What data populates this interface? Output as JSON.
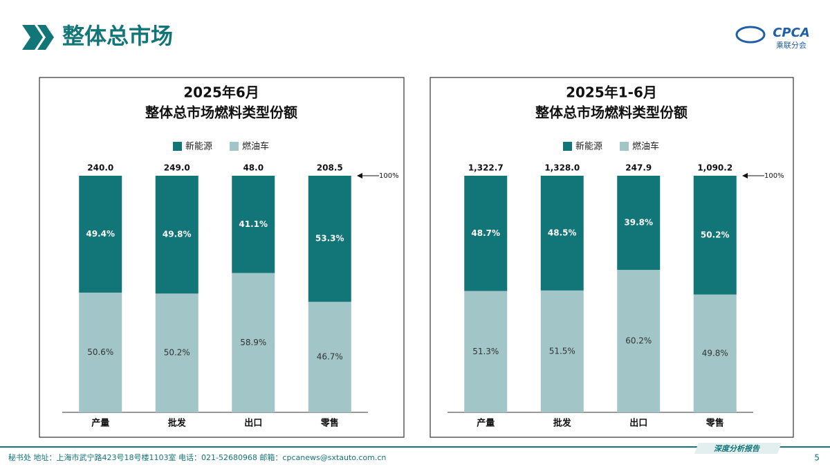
{
  "header": {
    "title": "整体总市场",
    "logo": "CPCA",
    "logo_sub": "乘联分会"
  },
  "chart_data": [
    {
      "type": "stacked_bar",
      "title": "2025年6月",
      "subtitle": "整体总市场燃料类型份额",
      "categories": [
        "产量",
        "批发",
        "出口",
        "零售"
      ],
      "series": [
        {
          "name": "新能源",
          "color": "#127577",
          "values": [
            49.4,
            49.8,
            41.1,
            53.3
          ],
          "value_labels": [
            "49.4%",
            "49.8%",
            "41.1%",
            "53.3%"
          ]
        },
        {
          "name": "燃油车",
          "color": "#a2c6c7",
          "values": [
            50.6,
            50.2,
            58.9,
            46.7
          ],
          "value_labels": [
            "50.6%",
            "50.2%",
            "58.9%",
            "46.7%"
          ]
        }
      ],
      "totals": {
        "values": [
          240,
          249,
          48,
          208.5
        ],
        "value_labels": [
          "240.0",
          "249.0",
          "48.0",
          "208.5"
        ]
      },
      "reference": {
        "value": 100,
        "label": "100%"
      },
      "ylim": [
        0,
        100
      ],
      "legend": "top"
    },
    {
      "type": "stacked_bar",
      "title": "2025年1-6月",
      "subtitle": "整体总市场燃料类型份额",
      "categories": [
        "产量",
        "批发",
        "出口",
        "零售"
      ],
      "series": [
        {
          "name": "新能源",
          "color": "#127577",
          "values": [
            48.7,
            48.5,
            39.8,
            50.2
          ],
          "value_labels": [
            "48.7%",
            "48.5%",
            "39.8%",
            "50.2%"
          ]
        },
        {
          "name": "燃油车",
          "color": "#a2c6c7",
          "values": [
            51.3,
            51.5,
            60.2,
            49.8
          ],
          "value_labels": [
            "51.3%",
            "51.5%",
            "60.2%",
            "49.8%"
          ]
        }
      ],
      "totals": {
        "values": [
          1322.7,
          1328,
          247.9,
          1090.2
        ],
        "value_labels": [
          "1,322.7",
          "1,328.0",
          "247.9",
          "1,090.2"
        ]
      },
      "reference": {
        "value": 100,
        "label": "100%"
      },
      "ylim": [
        0,
        100
      ],
      "legend": "top"
    }
  ],
  "footer": {
    "contact": "秘书处   地址：上海市武宁路423号18号楼1103室   电话：021-52680968   邮箱：cpcanews@sxtauto.com.cn",
    "tag": "深度分析报告",
    "page": "5"
  }
}
